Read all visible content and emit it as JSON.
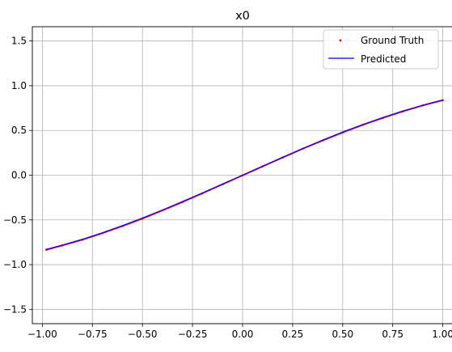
{
  "chart_data": {
    "type": "line",
    "title": "x0",
    "xlabel": "",
    "ylabel": "",
    "xlim": [
      -1.05,
      1.05
    ],
    "ylim": [
      -1.66,
      1.66
    ],
    "xticks": [
      -1.0,
      -0.75,
      -0.5,
      -0.25,
      0.0,
      0.25,
      0.5,
      0.75,
      1.0
    ],
    "xtick_labels": [
      "−1.00",
      "−0.75",
      "−0.50",
      "−0.25",
      "0.00",
      "0.25",
      "0.50",
      "0.75",
      "1.00"
    ],
    "yticks": [
      -1.5,
      -1.0,
      -0.5,
      0.0,
      0.5,
      1.0,
      1.5
    ],
    "ytick_labels": [
      "−1.5",
      "−1.0",
      "−0.5",
      "0.0",
      "0.5",
      "1.0",
      "1.5"
    ],
    "grid": true,
    "legend_position": "top-right",
    "series": [
      {
        "name": "Ground Truth",
        "style": "scatter",
        "color": "#ff0000",
        "x": [
          -0.98,
          -0.9,
          -0.8,
          -0.7,
          -0.6,
          -0.5,
          -0.4,
          -0.3,
          -0.2,
          -0.1,
          0.0,
          0.1,
          0.2,
          0.3,
          0.4,
          0.5,
          0.6,
          0.7,
          0.8,
          0.9,
          1.0
        ],
        "y": [
          -0.833,
          -0.785,
          -0.721,
          -0.648,
          -0.569,
          -0.485,
          -0.394,
          -0.3,
          -0.202,
          -0.102,
          -0.002,
          0.098,
          0.197,
          0.295,
          0.388,
          0.478,
          0.562,
          0.64,
          0.713,
          0.78,
          0.838
        ]
      },
      {
        "name": "Predicted",
        "style": "line",
        "color": "#0000ff",
        "x": [
          -0.98,
          -0.9,
          -0.8,
          -0.7,
          -0.6,
          -0.5,
          -0.4,
          -0.3,
          -0.2,
          -0.1,
          0.0,
          0.1,
          0.2,
          0.3,
          0.4,
          0.5,
          0.6,
          0.7,
          0.8,
          0.9,
          1.0
        ],
        "y": [
          -0.83,
          -0.782,
          -0.717,
          -0.644,
          -0.564,
          -0.479,
          -0.389,
          -0.295,
          -0.198,
          -0.099,
          0.0,
          0.1,
          0.2,
          0.298,
          0.392,
          0.482,
          0.566,
          0.644,
          0.717,
          0.782,
          0.842
        ]
      }
    ]
  }
}
